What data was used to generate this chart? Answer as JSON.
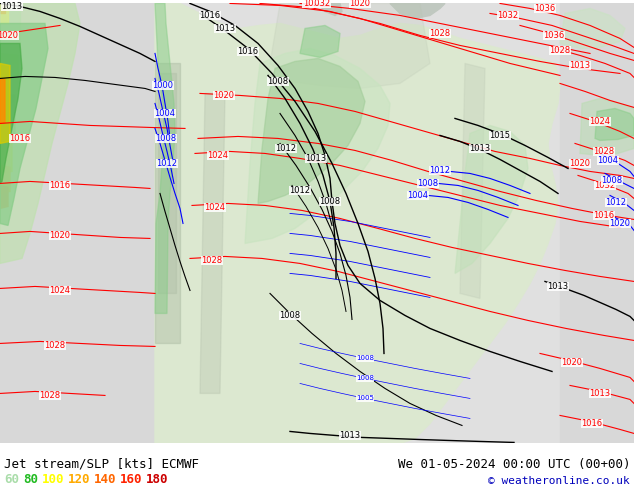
{
  "title_left": "Jet stream/SLP [kts] ECMWF",
  "title_right": "We 01-05-2024 00:00 UTC (00+00)",
  "copyright": "© weatheronline.co.uk",
  "legend_values": [
    "60",
    "80",
    "100",
    "120",
    "140",
    "160",
    "180"
  ],
  "legend_colors": [
    "#aaddaa",
    "#22bb22",
    "#ffff00",
    "#ffaa00",
    "#ff6600",
    "#ff2200",
    "#cc0000"
  ],
  "bg_color": "#ffffff",
  "ocean_color": "#e8e8e8",
  "land_color": "#e8f0e0",
  "bottom_bar_color": "#e0e0e0",
  "jet_colors": [
    "#c8e8c8",
    "#88cc88",
    "#44aa44",
    "#cccc00",
    "#ffaa00",
    "#ff6600"
  ],
  "jet_thresholds": [
    60,
    80,
    100,
    120,
    140,
    160
  ],
  "font_size_title": 9,
  "font_size_label": 6,
  "font_size_legend": 9,
  "font_size_copyright": 8
}
